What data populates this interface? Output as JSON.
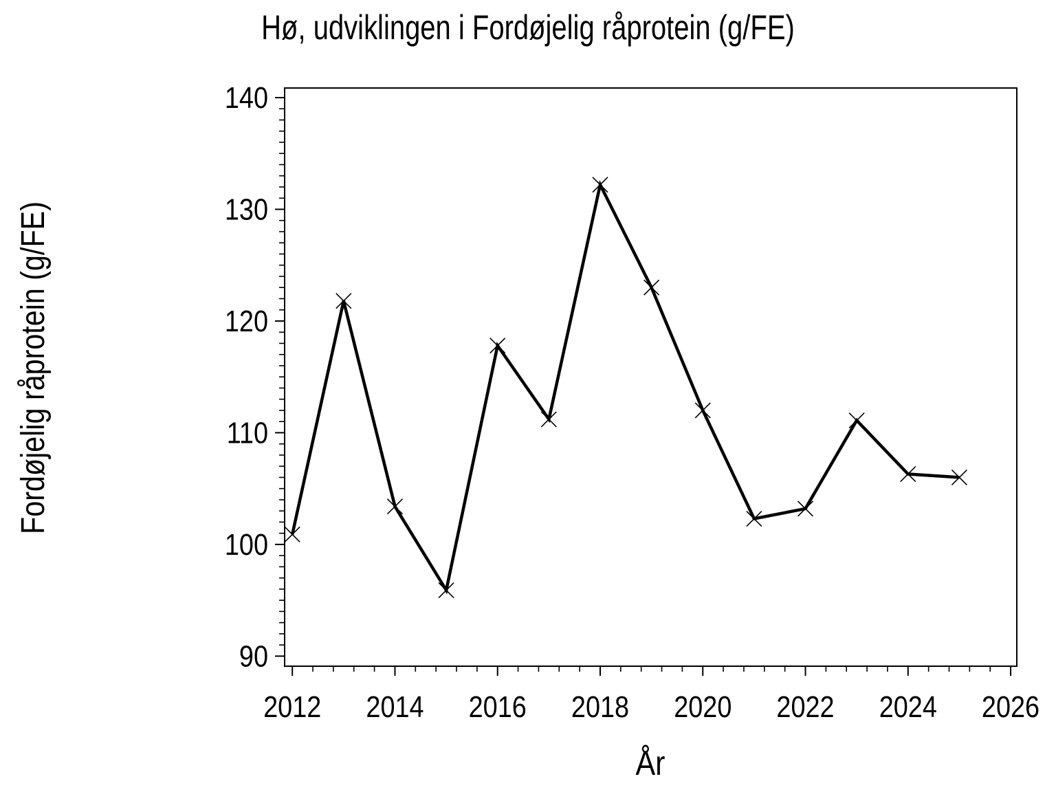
{
  "chart_data": {
    "type": "line",
    "title": "Hø, udviklingen i Fordøjelig råprotein (g/FE)",
    "xlabel": "År",
    "ylabel": "Fordøjelig råprotein (g/FE)",
    "series": [
      {
        "name": "Fordøjelig råprotein (g/FE)",
        "x": [
          2012,
          2013,
          2014,
          2015,
          2016,
          2017,
          2018,
          2019,
          2020,
          2021,
          2022,
          2023,
          2024,
          2025
        ],
        "values": [
          100.9,
          121.8,
          103.4,
          95.9,
          117.8,
          111.2,
          132.2,
          123.0,
          112.0,
          102.3,
          103.2,
          111.1,
          106.3,
          106.0
        ]
      }
    ],
    "xlim": [
      2011.85,
      2026.12
    ],
    "ylim": [
      89.1,
      140.86
    ],
    "x_major_ticks": [
      2012,
      2014,
      2016,
      2018,
      2020,
      2022,
      2024,
      2026
    ],
    "x_minor_step": 0.4,
    "y_major_ticks": [
      90,
      100,
      110,
      120,
      130,
      140
    ],
    "y_minor_step": 1,
    "marker": "x-cross",
    "line_color": "#000000",
    "marker_color": "#000000",
    "background_color": "#ffffff",
    "grid": false,
    "legend": false,
    "frame": "full-box"
  }
}
